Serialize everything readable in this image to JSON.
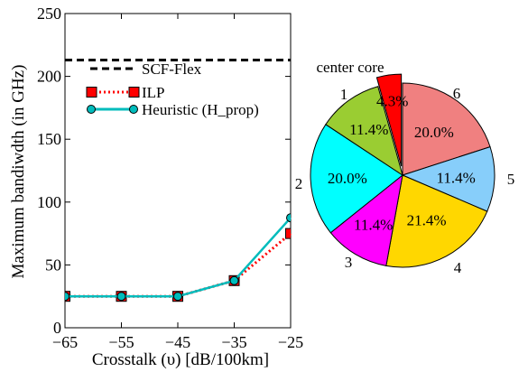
{
  "chart_data": [
    {
      "type": "line",
      "xlabel": "Crosstalk (υ) [dB/100km]",
      "ylabel": "Maximum bandiwdth (in GHz)",
      "xlim": [
        -65,
        -25
      ],
      "ylim": [
        0,
        250
      ],
      "xticks": [
        -65,
        -55,
        -45,
        -35,
        -25
      ],
      "xtick_labels": [
        "−65",
        "−55",
        "−45",
        "−35",
        "−25"
      ],
      "yticks": [
        0,
        50,
        100,
        150,
        200,
        250
      ],
      "grid": false,
      "legend_position": "top-center",
      "series": [
        {
          "name": "SCF-Flex",
          "style": "dashed",
          "color": "#000000",
          "x": [
            -65,
            -25
          ],
          "y": [
            213,
            213
          ]
        },
        {
          "name": "ILP",
          "style": "dotted",
          "marker": "square",
          "color": "#ff0000",
          "x": [
            -65,
            -55,
            -45,
            -35,
            -25
          ],
          "y": [
            25,
            25,
            25,
            37.5,
            75
          ]
        },
        {
          "name": "Heuristic (H_prop)",
          "style": "solid",
          "marker": "circle",
          "color": "#00bcbc",
          "x": [
            -65,
            -55,
            -45,
            -35,
            -25
          ],
          "y": [
            25,
            25,
            25,
            37.5,
            87.5
          ]
        }
      ]
    },
    {
      "type": "pie",
      "annotation": "center core",
      "slices": [
        {
          "label": "6",
          "value": 20.0,
          "pct_label": "20.0%",
          "color": "#f08080",
          "explode": false
        },
        {
          "label": "5",
          "value": 11.4,
          "pct_label": "11.4%",
          "color": "#87cefa",
          "explode": false
        },
        {
          "label": "4",
          "value": 21.4,
          "pct_label": "21.4%",
          "color": "#ffd700",
          "explode": false
        },
        {
          "label": "3",
          "value": 11.4,
          "pct_label": "11.4%",
          "color": "#ff00ff",
          "explode": false
        },
        {
          "label": "2",
          "value": 20.0,
          "pct_label": "20.0%",
          "color": "#00ffff",
          "explode": false
        },
        {
          "label": "1",
          "value": 11.4,
          "pct_label": "11.4%",
          "color": "#9acd32",
          "explode": false
        },
        {
          "label": "",
          "value": 4.3,
          "pct_label": "4.3%",
          "color": "#ff0000",
          "explode": true
        }
      ]
    }
  ]
}
